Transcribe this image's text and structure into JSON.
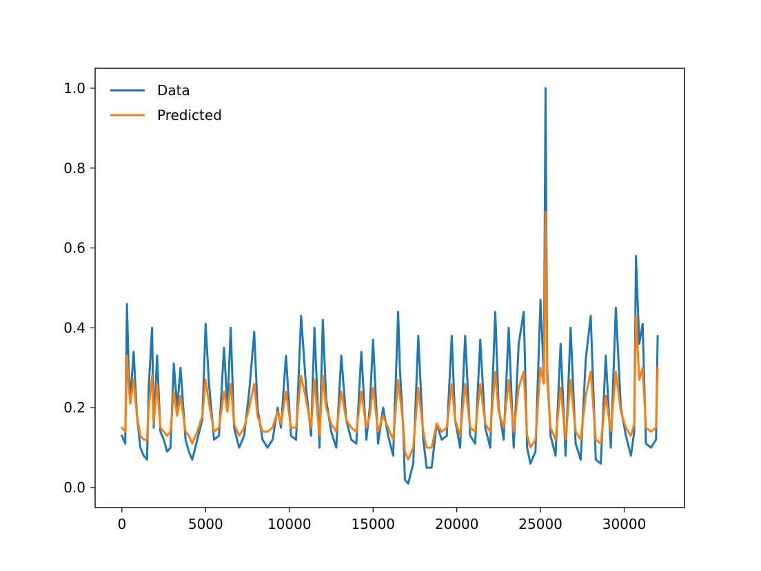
{
  "chart_data": {
    "type": "line",
    "title": "",
    "xlabel": "",
    "ylabel": "",
    "xlim": [
      -1600,
      33600
    ],
    "ylim": [
      -0.05,
      1.05
    ],
    "xticks": [
      0,
      5000,
      10000,
      15000,
      20000,
      25000,
      30000
    ],
    "xtick_labels": [
      "0",
      "5000",
      "10000",
      "15000",
      "20000",
      "25000",
      "30000"
    ],
    "yticks": [
      0.0,
      0.2,
      0.4,
      0.6,
      0.8,
      1.0
    ],
    "ytick_labels": [
      "0.0",
      "0.2",
      "0.4",
      "0.6",
      "0.8",
      "1.0"
    ],
    "grid": false,
    "legend_position": "top-left",
    "series": [
      {
        "name": "Data",
        "color": "#1f77b4",
        "x": [
          0,
          200,
          300,
          400,
          500,
          700,
          900,
          1100,
          1300,
          1500,
          1600,
          1800,
          1900,
          2100,
          2300,
          2500,
          2700,
          2900,
          3100,
          3300,
          3500,
          3800,
          4000,
          4200,
          4500,
          4800,
          5000,
          5200,
          5500,
          5800,
          6100,
          6300,
          6500,
          6700,
          7000,
          7300,
          7600,
          7900,
          8100,
          8400,
          8700,
          9000,
          9300,
          9500,
          9800,
          10100,
          10400,
          10700,
          11000,
          11300,
          11500,
          11800,
          12000,
          12200,
          12500,
          12800,
          13100,
          13400,
          13700,
          14000,
          14300,
          14600,
          14800,
          15000,
          15300,
          15600,
          15900,
          16200,
          16500,
          16600,
          16800,
          16900,
          17100,
          17400,
          17700,
          18000,
          18200,
          18500,
          18800,
          19100,
          19400,
          19700,
          19900,
          20200,
          20500,
          20800,
          21100,
          21400,
          21700,
          22000,
          22300,
          22500,
          22800,
          23100,
          23400,
          23700,
          24000,
          24200,
          24400,
          24700,
          25000,
          25200,
          25300,
          25400,
          25600,
          25900,
          26200,
          26500,
          26800,
          27100,
          27400,
          27700,
          28000,
          28300,
          28600,
          28900,
          29200,
          29500,
          29800,
          30100,
          30400,
          30600,
          30700,
          30900,
          31100,
          31300,
          31600,
          31900,
          32000
        ],
        "y": [
          0.13,
          0.11,
          0.46,
          0.3,
          0.22,
          0.34,
          0.18,
          0.1,
          0.08,
          0.07,
          0.25,
          0.4,
          0.15,
          0.33,
          0.14,
          0.12,
          0.09,
          0.1,
          0.31,
          0.2,
          0.3,
          0.12,
          0.09,
          0.07,
          0.12,
          0.17,
          0.41,
          0.26,
          0.12,
          0.13,
          0.35,
          0.2,
          0.4,
          0.15,
          0.1,
          0.13,
          0.24,
          0.39,
          0.2,
          0.12,
          0.1,
          0.12,
          0.2,
          0.15,
          0.33,
          0.13,
          0.12,
          0.43,
          0.25,
          0.13,
          0.4,
          0.1,
          0.42,
          0.22,
          0.14,
          0.1,
          0.33,
          0.17,
          0.12,
          0.11,
          0.34,
          0.12,
          0.2,
          0.37,
          0.11,
          0.2,
          0.13,
          0.08,
          0.44,
          0.3,
          0.15,
          0.02,
          0.01,
          0.06,
          0.38,
          0.12,
          0.05,
          0.05,
          0.16,
          0.12,
          0.13,
          0.38,
          0.17,
          0.1,
          0.38,
          0.13,
          0.11,
          0.37,
          0.15,
          0.1,
          0.44,
          0.2,
          0.12,
          0.4,
          0.1,
          0.36,
          0.44,
          0.1,
          0.06,
          0.09,
          0.47,
          0.28,
          1.0,
          0.3,
          0.13,
          0.08,
          0.36,
          0.08,
          0.4,
          0.11,
          0.07,
          0.32,
          0.43,
          0.07,
          0.06,
          0.33,
          0.1,
          0.45,
          0.2,
          0.13,
          0.08,
          0.14,
          0.58,
          0.36,
          0.41,
          0.11,
          0.1,
          0.12,
          0.38
        ]
      },
      {
        "name": "Predicted",
        "color": "#ff7f0e",
        "x": [
          0,
          200,
          300,
          400,
          500,
          700,
          900,
          1100,
          1300,
          1500,
          1600,
          1800,
          1900,
          2100,
          2300,
          2500,
          2700,
          2900,
          3100,
          3300,
          3500,
          3800,
          4000,
          4200,
          4500,
          4800,
          5000,
          5200,
          5500,
          5800,
          6100,
          6300,
          6500,
          6700,
          7000,
          7300,
          7600,
          7900,
          8100,
          8400,
          8700,
          9000,
          9300,
          9500,
          9800,
          10100,
          10400,
          10700,
          11000,
          11300,
          11500,
          11800,
          12000,
          12200,
          12500,
          12800,
          13100,
          13400,
          13700,
          14000,
          14300,
          14600,
          14800,
          15000,
          15300,
          15600,
          15900,
          16200,
          16500,
          16600,
          16800,
          16900,
          17100,
          17400,
          17700,
          18000,
          18200,
          18500,
          18800,
          19100,
          19400,
          19700,
          19900,
          20200,
          20500,
          20800,
          21100,
          21400,
          21700,
          22000,
          22300,
          22500,
          22800,
          23100,
          23400,
          23700,
          24000,
          24200,
          24400,
          24700,
          25000,
          25200,
          25300,
          25400,
          25600,
          25900,
          26200,
          26500,
          26800,
          27100,
          27400,
          27700,
          28000,
          28300,
          28600,
          28900,
          29200,
          29500,
          29800,
          30100,
          30400,
          30600,
          30700,
          30900,
          31100,
          31300,
          31600,
          31900,
          32000
        ],
        "y": [
          0.15,
          0.14,
          0.33,
          0.26,
          0.21,
          0.27,
          0.18,
          0.13,
          0.12,
          0.12,
          0.2,
          0.28,
          0.16,
          0.26,
          0.15,
          0.14,
          0.13,
          0.14,
          0.24,
          0.18,
          0.23,
          0.14,
          0.13,
          0.11,
          0.14,
          0.18,
          0.27,
          0.21,
          0.14,
          0.15,
          0.24,
          0.19,
          0.26,
          0.16,
          0.13,
          0.15,
          0.2,
          0.26,
          0.18,
          0.14,
          0.14,
          0.15,
          0.19,
          0.16,
          0.24,
          0.15,
          0.15,
          0.28,
          0.22,
          0.15,
          0.27,
          0.13,
          0.28,
          0.2,
          0.16,
          0.14,
          0.24,
          0.17,
          0.15,
          0.14,
          0.24,
          0.15,
          0.18,
          0.25,
          0.14,
          0.18,
          0.15,
          0.12,
          0.27,
          0.23,
          0.16,
          0.09,
          0.07,
          0.1,
          0.25,
          0.14,
          0.1,
          0.1,
          0.16,
          0.14,
          0.15,
          0.26,
          0.17,
          0.13,
          0.26,
          0.15,
          0.14,
          0.26,
          0.16,
          0.14,
          0.29,
          0.19,
          0.15,
          0.27,
          0.14,
          0.25,
          0.29,
          0.13,
          0.1,
          0.12,
          0.3,
          0.26,
          0.69,
          0.27,
          0.15,
          0.12,
          0.25,
          0.12,
          0.27,
          0.14,
          0.12,
          0.23,
          0.29,
          0.12,
          0.11,
          0.23,
          0.14,
          0.29,
          0.19,
          0.15,
          0.13,
          0.16,
          0.43,
          0.27,
          0.3,
          0.15,
          0.14,
          0.15,
          0.3
        ]
      }
    ]
  }
}
